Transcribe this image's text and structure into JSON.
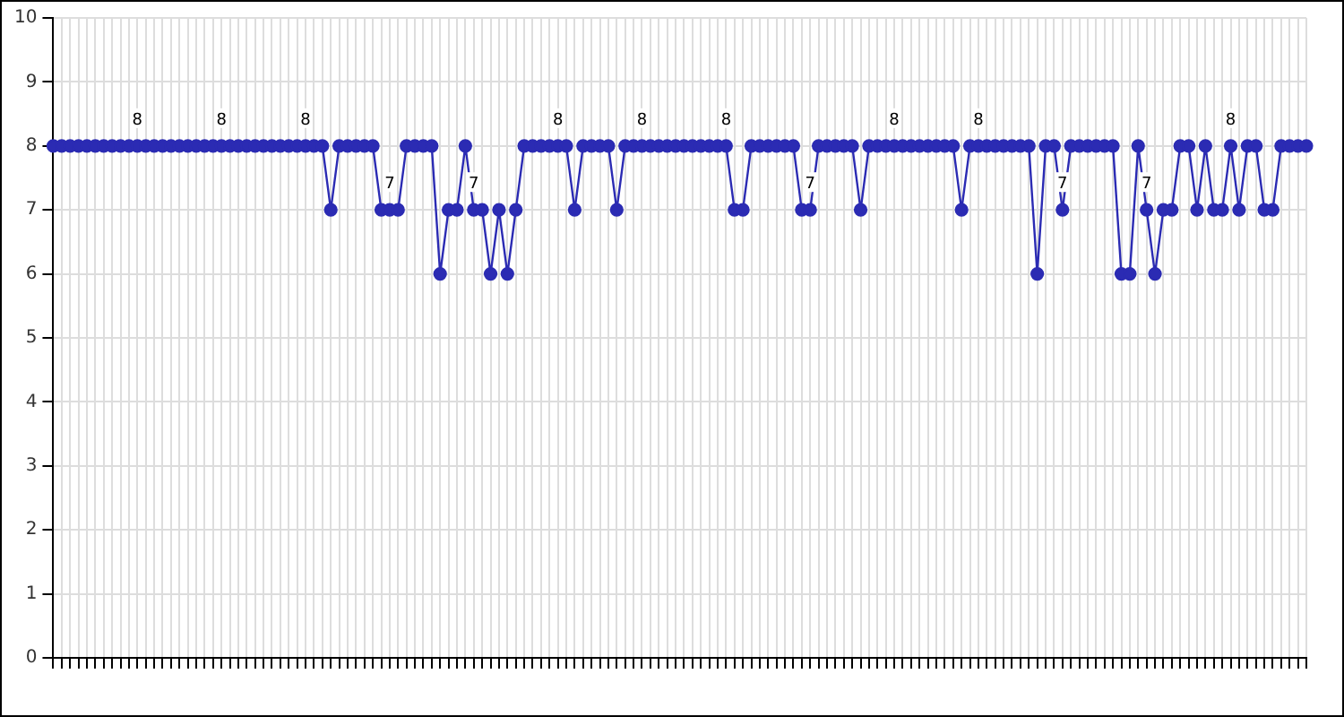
{
  "chart_data": {
    "type": "line",
    "categories": [
      null,
      null,
      null,
      null,
      null,
      null,
      null,
      null,
      null,
      null,
      null,
      null,
      null,
      null,
      null,
      null,
      null,
      null,
      null,
      null,
      null,
      null,
      null,
      null,
      null,
      null,
      null,
      null,
      null,
      null,
      null,
      null,
      null,
      null,
      null,
      null,
      null,
      null,
      null,
      null,
      null,
      null,
      null,
      null,
      null,
      null,
      null,
      null,
      null,
      null,
      null,
      null,
      null,
      null,
      null,
      null,
      null,
      null,
      null,
      null,
      null,
      null,
      null,
      null,
      null,
      null,
      null,
      null,
      null,
      null,
      null,
      null,
      null,
      null,
      null,
      null,
      null,
      null,
      null,
      null,
      null,
      null,
      null,
      null,
      null,
      null,
      null,
      null,
      null,
      null,
      null,
      null,
      null,
      null,
      null,
      null,
      null,
      null,
      null,
      null,
      null,
      null,
      null,
      null,
      null,
      null,
      null,
      null,
      null,
      null,
      null,
      null,
      null,
      null,
      null,
      null,
      null,
      null,
      null,
      null,
      null,
      null,
      null,
      null,
      null,
      null,
      null,
      null,
      null,
      null,
      null,
      null,
      null,
      null,
      null,
      null,
      null,
      null,
      null,
      null,
      null,
      null,
      null,
      null,
      null,
      null,
      null,
      null,
      null,
      null
    ],
    "series": [
      {
        "color": "#2b2bb3",
        "values": [
          8,
          8,
          8,
          8,
          8,
          8,
          8,
          8,
          8,
          8,
          8,
          8,
          8,
          8,
          8,
          8,
          8,
          8,
          8,
          8,
          8,
          8,
          8,
          8,
          8,
          8,
          8,
          8,
          8,
          8,
          8,
          8,
          8,
          7,
          8,
          8,
          8,
          8,
          8,
          7,
          7,
          7,
          8,
          8,
          8,
          8,
          6,
          7,
          7,
          8,
          7,
          7,
          6,
          7,
          6,
          7,
          8,
          8,
          8,
          8,
          8,
          8,
          7,
          8,
          8,
          8,
          8,
          7,
          8,
          8,
          8,
          8,
          8,
          8,
          8,
          8,
          8,
          8,
          8,
          8,
          8,
          7,
          7,
          8,
          8,
          8,
          8,
          8,
          8,
          7,
          7,
          8,
          8,
          8,
          8,
          8,
          7,
          8,
          8,
          8,
          8,
          8,
          8,
          8,
          8,
          8,
          8,
          8,
          7,
          8,
          8,
          8,
          8,
          8,
          8,
          8,
          8,
          6,
          8,
          8,
          7,
          8,
          8,
          8,
          8,
          8,
          8,
          6,
          6,
          8,
          7,
          6,
          7,
          7,
          8,
          8,
          7,
          8,
          7,
          7,
          8,
          7,
          8,
          8,
          7,
          7,
          8,
          8,
          8,
          8
        ],
        "value_labels": [
          null,
          null,
          null,
          null,
          null,
          null,
          null,
          null,
          null,
          null,
          "8",
          null,
          null,
          null,
          null,
          null,
          null,
          null,
          null,
          null,
          "8",
          null,
          null,
          null,
          null,
          null,
          null,
          null,
          null,
          null,
          "8",
          null,
          null,
          null,
          null,
          null,
          null,
          null,
          null,
          null,
          "7",
          null,
          null,
          null,
          null,
          null,
          null,
          null,
          null,
          null,
          "7",
          null,
          null,
          null,
          null,
          null,
          null,
          null,
          null,
          null,
          "8",
          null,
          null,
          null,
          null,
          null,
          null,
          null,
          null,
          null,
          "8",
          null,
          null,
          null,
          null,
          null,
          null,
          null,
          null,
          null,
          "8",
          null,
          null,
          null,
          null,
          null,
          null,
          null,
          null,
          null,
          "7",
          null,
          null,
          null,
          null,
          null,
          null,
          null,
          null,
          null,
          "8",
          null,
          null,
          null,
          null,
          null,
          null,
          null,
          null,
          null,
          "8",
          null,
          null,
          null,
          null,
          null,
          null,
          null,
          null,
          null,
          "7",
          null,
          null,
          null,
          null,
          null,
          null,
          null,
          null,
          null,
          "7",
          null,
          null,
          null,
          null,
          null,
          null,
          null,
          null,
          null,
          "8",
          null,
          null,
          null,
          null,
          null,
          null,
          null,
          null,
          null
        ]
      }
    ],
    "ylim": [
      0,
      10
    ],
    "yticks": [
      0,
      1,
      2,
      3,
      4,
      5,
      6,
      7,
      8,
      9,
      10
    ],
    "grid": true,
    "marker": "circle",
    "line_style": "solid",
    "tick_labels": "y",
    "legend": false
  }
}
